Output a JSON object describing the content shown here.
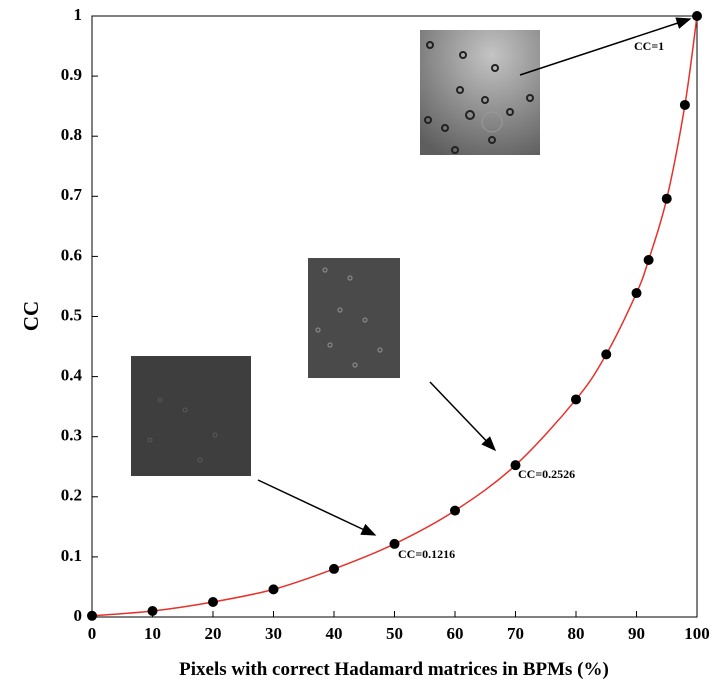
{
  "chart_data": {
    "type": "scatter",
    "x_label": "Pixels with correct Hadamard matrices in BPMs (%)",
    "y_label": "CC",
    "x": [
      0,
      10,
      20,
      30,
      40,
      50,
      60,
      70,
      80,
      85,
      90,
      92,
      95,
      98,
      100
    ],
    "values": [
      0.002,
      0.01,
      0.025,
      0.046,
      0.08,
      0.1216,
      0.177,
      0.2526,
      0.362,
      0.437,
      0.539,
      0.594,
      0.696,
      0.852,
      1
    ],
    "marker_color": "#000000",
    "line_color": "#e8312a",
    "xlim": [
      0,
      100
    ],
    "xticks": [
      0,
      10,
      20,
      30,
      40,
      50,
      60,
      70,
      80,
      90,
      100
    ],
    "ylim": [
      0,
      1
    ],
    "yticks": [
      0,
      0.1,
      0.2,
      0.3,
      0.4,
      0.5,
      0.6,
      0.7,
      0.8,
      0.9,
      1
    ],
    "grid": false,
    "annotations": [
      "CC=1",
      "CC=0.2526",
      "CC=0.1216"
    ]
  }
}
